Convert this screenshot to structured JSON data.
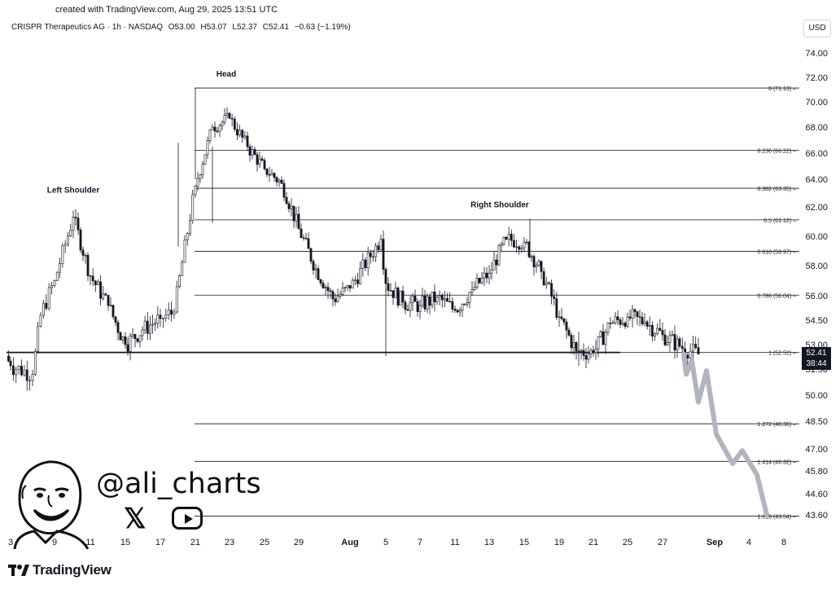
{
  "header": {
    "created": "created with TradingView.com, Aug 29, 2025 13:51 UTC",
    "symbol": "CRISPR Therapeutics AG · 1h · NASDAQ",
    "open": "O53.00",
    "high": "H53.07",
    "low": "L52.37",
    "close": "C52.41",
    "change": "−0.63 (−1.19%)",
    "currency": "USD"
  },
  "current_price": {
    "price": "52.41",
    "countdown": "38:44"
  },
  "brand": {
    "name": "TradingView"
  },
  "watermark": {
    "handle": "@ali_charts",
    "icons": [
      "x-logo-icon",
      "youtube-icon",
      "cartoon-avatar-icon"
    ]
  },
  "chart_data": {
    "type": "candlestick",
    "title": "",
    "yaxis_ticks": [
      "74.00",
      "72.00",
      "70.00",
      "68.00",
      "66.00",
      "64.00",
      "62.00",
      "60.00",
      "58.00",
      "56.00",
      "54.50",
      "53.00",
      "51.50",
      "50.00",
      "48.50",
      "47.00",
      "45.80",
      "44.60",
      "43.60"
    ],
    "xaxis_ticks": [
      "3",
      "9",
      "11",
      "15",
      "17",
      "21",
      "23",
      "25",
      "29",
      "Aug",
      "5",
      "7",
      "11",
      "13",
      "15",
      "19",
      "21",
      "25",
      "27",
      "Sep",
      "4",
      "8"
    ],
    "fib_levels": [
      {
        "ratio": "0",
        "price": 71.13,
        "label": "0 (71.13)"
      },
      {
        "ratio": "0.236",
        "price": 66.22,
        "label": "0.236 (66.22)"
      },
      {
        "ratio": "0.382",
        "price": 63.35,
        "label": "0.382 (63.35)"
      },
      {
        "ratio": "0.5",
        "price": 61.12,
        "label": "0.5 (61.12)"
      },
      {
        "ratio": "0.618",
        "price": 58.97,
        "label": "0.618 (58.97)"
      },
      {
        "ratio": "0.786",
        "price": 56.04,
        "label": "0.786 (56.04)"
      },
      {
        "ratio": "1",
        "price": 52.52,
        "label": "1 (52.52)"
      },
      {
        "ratio": "1.272",
        "price": 48.36,
        "label": "1.272 (48.36)"
      },
      {
        "ratio": "1.414",
        "price": 46.32,
        "label": "1.414 (46.32)"
      },
      {
        "ratio": "1.618",
        "price": 43.54,
        "label": "1.618 (43.54)"
      }
    ],
    "neckline_price": 52.52,
    "annotations": [
      {
        "text": "Left Shoulder",
        "price_high": 62.2
      },
      {
        "text": "Head",
        "price_high": 71.13
      },
      {
        "text": "Right Shoulder",
        "price_high": 61.2
      }
    ],
    "price_path": [
      {
        "date": "Jul 2",
        "price": 52.3
      },
      {
        "date": "Jul 3",
        "price": 51.7
      },
      {
        "date": "Jul 7",
        "price": 51.2
      },
      {
        "date": "Jul 8",
        "price": 54.8
      },
      {
        "date": "Jul 9",
        "price": 57.0
      },
      {
        "date": "Jul 10",
        "price": 61.3
      },
      {
        "date": "Jul 11",
        "price": 57.3
      },
      {
        "date": "Jul 14",
        "price": 55.4
      },
      {
        "date": "Jul 15",
        "price": 53.0
      },
      {
        "date": "Jul 16",
        "price": 53.9
      },
      {
        "date": "Jul 17",
        "price": 54.6
      },
      {
        "date": "Jul 18",
        "price": 55.0
      },
      {
        "date": "Jul 21",
        "price": 63.5
      },
      {
        "date": "Jul 22",
        "price": 68.0
      },
      {
        "date": "Jul 23",
        "price": 68.7
      },
      {
        "date": "Jul 24",
        "price": 66.5
      },
      {
        "date": "Jul 25",
        "price": 64.8
      },
      {
        "date": "Jul 28",
        "price": 63.7
      },
      {
        "date": "Jul 29",
        "price": 60.5
      },
      {
        "date": "Jul 30",
        "price": 57.8
      },
      {
        "date": "Jul 31",
        "price": 55.8
      },
      {
        "date": "Aug 1",
        "price": 56.5
      },
      {
        "date": "Aug 4",
        "price": 59.8
      },
      {
        "date": "Aug 5",
        "price": 56.8
      },
      {
        "date": "Aug 6",
        "price": 55.6
      },
      {
        "date": "Aug 7",
        "price": 55.4
      },
      {
        "date": "Aug 8",
        "price": 55.9
      },
      {
        "date": "Aug 11",
        "price": 55.1
      },
      {
        "date": "Aug 12",
        "price": 56.4
      },
      {
        "date": "Aug 13",
        "price": 57.5
      },
      {
        "date": "Aug 14",
        "price": 59.8
      },
      {
        "date": "Aug 15",
        "price": 59.6
      },
      {
        "date": "Aug 18",
        "price": 57.6
      },
      {
        "date": "Aug 19",
        "price": 54.7
      },
      {
        "date": "Aug 20",
        "price": 52.6
      },
      {
        "date": "Aug 21",
        "price": 52.5
      },
      {
        "date": "Aug 22",
        "price": 54.3
      },
      {
        "date": "Aug 25",
        "price": 54.7
      },
      {
        "date": "Aug 26",
        "price": 54.4
      },
      {
        "date": "Aug 27",
        "price": 53.6
      },
      {
        "date": "Aug 28",
        "price": 52.9
      },
      {
        "date": "Aug 29",
        "price": 52.41
      }
    ],
    "projection_path": [
      52.41,
      51.2,
      52.0,
      49.6,
      51.4,
      47.8,
      46.2,
      46.9,
      45.6,
      43.6
    ],
    "colors": {
      "candle": "#131722",
      "projection": "#b2b5be",
      "fib_line": "#131722",
      "neckline": "#131722"
    }
  }
}
